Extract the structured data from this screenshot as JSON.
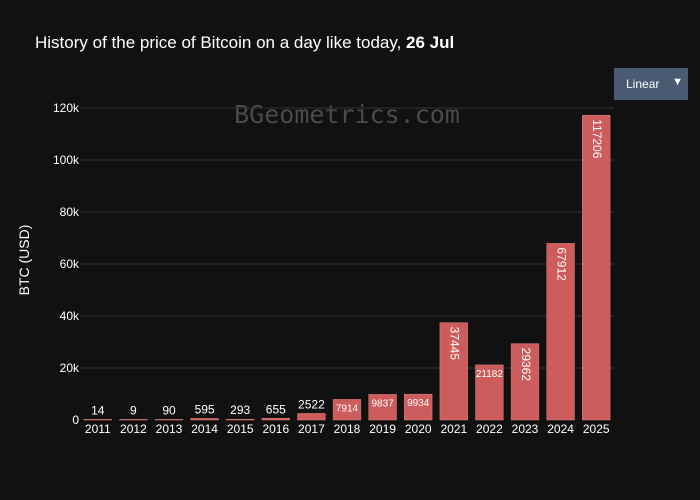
{
  "title": {
    "prefix": "History of the price of Bitcoin on a day like today, ",
    "date": "26 Jul"
  },
  "watermark": "BGeometrics.com",
  "scale_selector": {
    "selected": "Linear",
    "arrow": "▼"
  },
  "colors": {
    "background": "#111111",
    "bar": "#cd5c5c",
    "grid": "#2e3340",
    "button": "#4a5a72"
  },
  "chart_data": {
    "type": "bar",
    "title": "History of the price of Bitcoin on a day like today, 26 Jul",
    "xlabel": "",
    "ylabel": "BTC (USD)",
    "ylim": [
      0,
      120000
    ],
    "yticks": [
      0,
      20000,
      40000,
      60000,
      80000,
      100000,
      120000
    ],
    "ytick_labels": [
      "0",
      "20k",
      "40k",
      "60k",
      "80k",
      "100k",
      "120k"
    ],
    "grid": true,
    "categories": [
      "2011",
      "2012",
      "2013",
      "2014",
      "2015",
      "2016",
      "2017",
      "2018",
      "2019",
      "2020",
      "2021",
      "2022",
      "2023",
      "2024",
      "2025"
    ],
    "values": [
      14,
      9,
      90,
      595,
      293,
      655,
      2522,
      7914,
      9837,
      9934,
      37445,
      21182,
      29362,
      67912,
      117206
    ],
    "labels": [
      "14",
      "9",
      "90",
      "595",
      "293",
      "655",
      "2522",
      "7914",
      "9837",
      "9934",
      "37445",
      "21182",
      "29362",
      "67912",
      "117206"
    ]
  }
}
